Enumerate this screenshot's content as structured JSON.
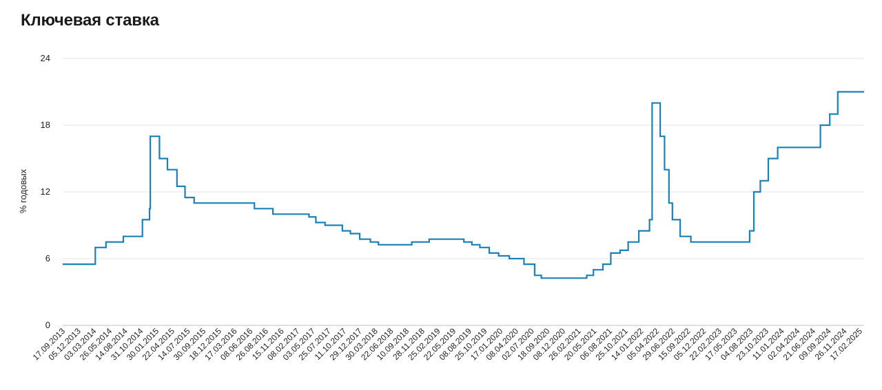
{
  "chart_data": {
    "type": "line",
    "title": "Ключевая ставка",
    "xlabel": "",
    "ylabel": "% годовых",
    "ylim": [
      0,
      24
    ],
    "yticks": [
      0,
      6,
      12,
      18,
      24
    ],
    "grid": true,
    "line_color": "#1a80b6",
    "x_axis_start": "2013-09-13",
    "x_axis_end": "2025-03-15",
    "xtick_labels": [
      "17.09.2013",
      "05.12.2013",
      "03.03.2014",
      "26.05.2014",
      "14.08.2014",
      "31.10.2014",
      "30.01.2015",
      "22.04.2015",
      "14.07.2015",
      "30.09.2015",
      "18.12.2015",
      "17.03.2016",
      "08.06.2016",
      "26.08.2016",
      "15.11.2016",
      "08.02.2017",
      "03.05.2017",
      "25.07.2017",
      "11.10.2017",
      "29.12.2017",
      "30.03.2018",
      "22.06.2018",
      "10.09.2018",
      "28.11.2018",
      "25.02.2019",
      "22.05.2019",
      "08.08.2019",
      "25.10.2019",
      "17.01.2020",
      "08.04.2020",
      "02.07.2020",
      "18.09.2020",
      "08.12.2020",
      "26.02.2021",
      "20.05.2021",
      "06.08.2021",
      "25.10.2021",
      "14.01.2022",
      "05.04.2022",
      "29.06.2022",
      "15.09.2022",
      "05.12.2022",
      "22.02.2023",
      "17.05.2023",
      "04.08.2023",
      "23.10.2023",
      "11.01.2024",
      "02.04.2024",
      "21.06.2024",
      "09.09.2024",
      "26.11.2024",
      "17.02.2025"
    ],
    "series": [
      {
        "name": "",
        "x": [
          "2013-09-13",
          "2014-03-03",
          "2014-04-28",
          "2014-07-28",
          "2014-11-05",
          "2014-12-12",
          "2014-12-16",
          "2015-02-02",
          "2015-03-16",
          "2015-05-05",
          "2015-06-16",
          "2015-08-03",
          "2016-06-14",
          "2016-09-19",
          "2017-03-27",
          "2017-05-02",
          "2017-06-19",
          "2017-09-18",
          "2017-10-30",
          "2017-12-18",
          "2018-02-12",
          "2018-03-26",
          "2018-09-17",
          "2018-12-17",
          "2019-06-17",
          "2019-07-29",
          "2019-09-09",
          "2019-10-28",
          "2019-12-16",
          "2020-02-10",
          "2020-04-27",
          "2020-06-22",
          "2020-07-27",
          "2021-03-22",
          "2021-04-26",
          "2021-06-15",
          "2021-07-26",
          "2021-09-13",
          "2021-10-25",
          "2021-12-20",
          "2022-02-14",
          "2022-02-28",
          "2022-04-11",
          "2022-05-04",
          "2022-05-27",
          "2022-06-14",
          "2022-07-25",
          "2022-09-19",
          "2023-07-24",
          "2023-08-15",
          "2023-09-18",
          "2023-10-30",
          "2023-12-18",
          "2024-07-29",
          "2024-09-16",
          "2024-10-28",
          "2025-03-15"
        ],
        "y": [
          5.5,
          7.0,
          7.5,
          8.0,
          9.5,
          10.5,
          17.0,
          15.0,
          14.0,
          12.5,
          11.5,
          11.0,
          10.5,
          10.0,
          9.75,
          9.25,
          9.0,
          8.5,
          8.25,
          7.75,
          7.5,
          7.25,
          7.5,
          7.75,
          7.5,
          7.25,
          7.0,
          6.5,
          6.25,
          6.0,
          5.5,
          4.5,
          4.25,
          4.5,
          5.0,
          5.5,
          6.5,
          6.75,
          7.5,
          8.5,
          9.5,
          20.0,
          17.0,
          14.0,
          11.0,
          9.5,
          8.0,
          7.5,
          8.5,
          12.0,
          13.0,
          15.0,
          16.0,
          18.0,
          19.0,
          21.0,
          21.0
        ]
      }
    ]
  }
}
